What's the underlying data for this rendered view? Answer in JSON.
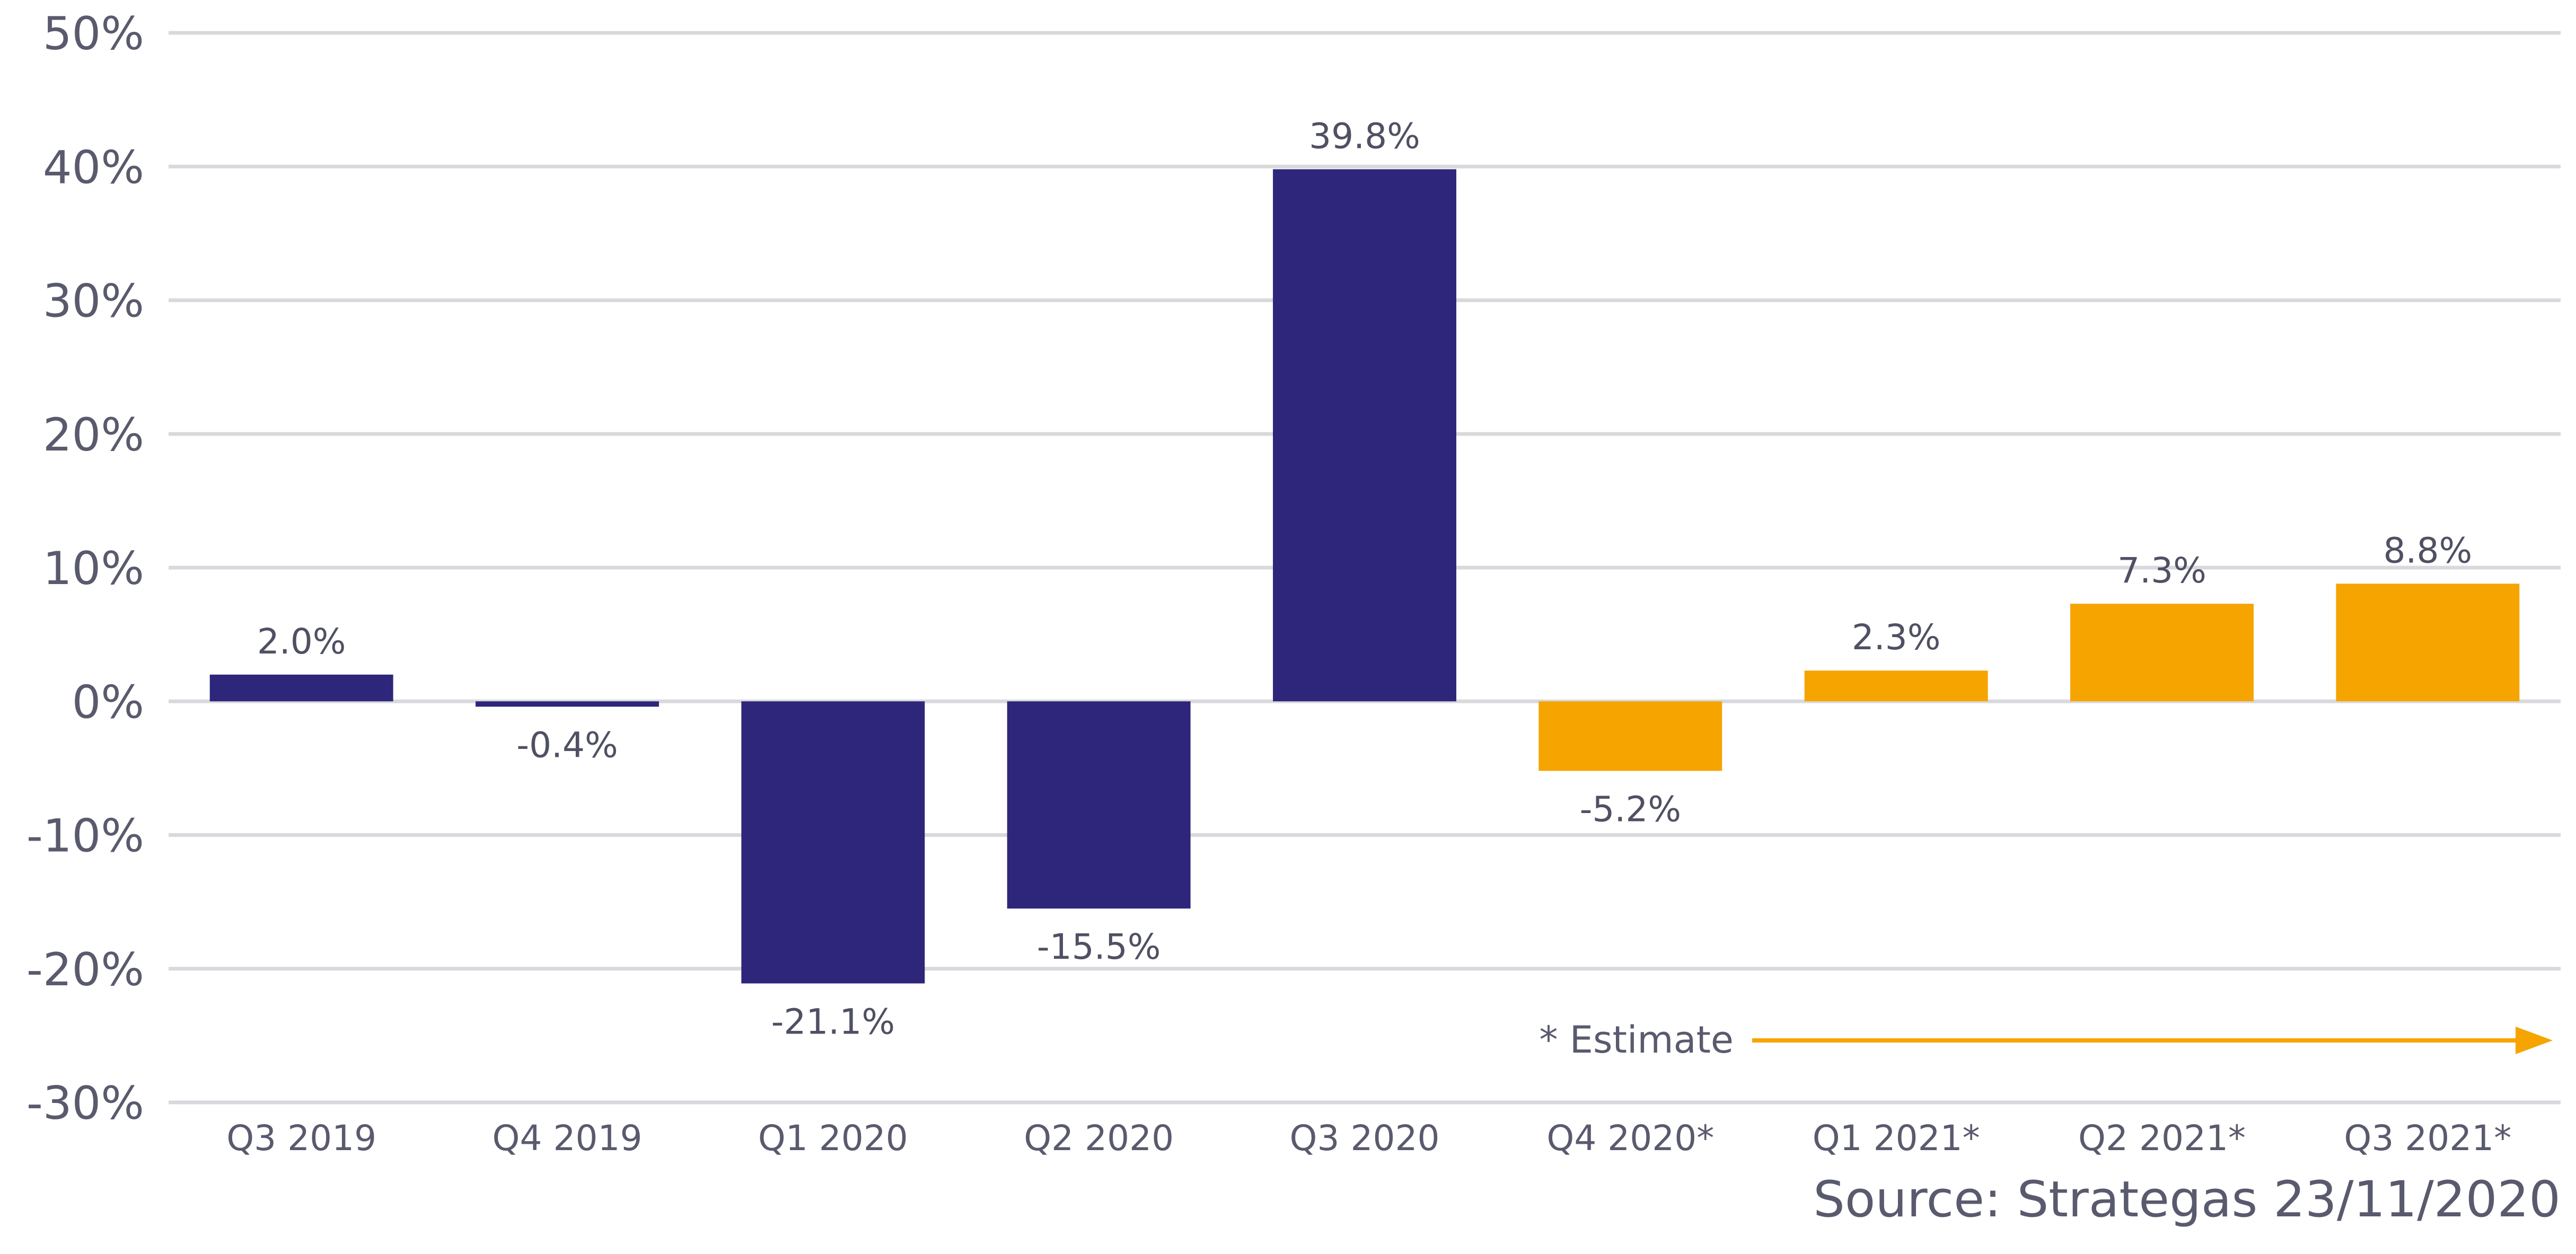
{
  "chart_data": {
    "type": "bar",
    "categories": [
      "Q3 2019",
      "Q4 2019",
      "Q1 2020",
      "Q2 2020",
      "Q3 2020",
      "Q4 2020*",
      "Q1 2021*",
      "Q2 2021*",
      "Q3 2021*"
    ],
    "values": [
      2.0,
      -0.4,
      -21.1,
      -15.5,
      39.8,
      -5.2,
      2.3,
      7.3,
      8.8
    ],
    "data_labels": [
      "2.0%",
      "-0.4%",
      "-21.1%",
      "-15.5%",
      "39.8%",
      "-5.2%",
      "2.3%",
      "7.3%",
      "8.8%"
    ],
    "estimate": [
      false,
      false,
      false,
      false,
      false,
      true,
      true,
      true,
      true
    ],
    "ylim": [
      -30,
      50
    ],
    "yticks": [
      50,
      40,
      30,
      20,
      10,
      0,
      -10,
      -20,
      -30
    ],
    "ytick_labels": [
      "50%",
      "40%",
      "30%",
      "20%",
      "10%",
      "0%",
      "-10%",
      "-20%",
      "-30%"
    ],
    "grid": true,
    "colors": {
      "actual": "#2e267b",
      "estimate": "#f5a400",
      "grid": "#d9d9dd"
    },
    "annotation": "* Estimate",
    "source": "Source: Strategas 23/11/2020"
  }
}
